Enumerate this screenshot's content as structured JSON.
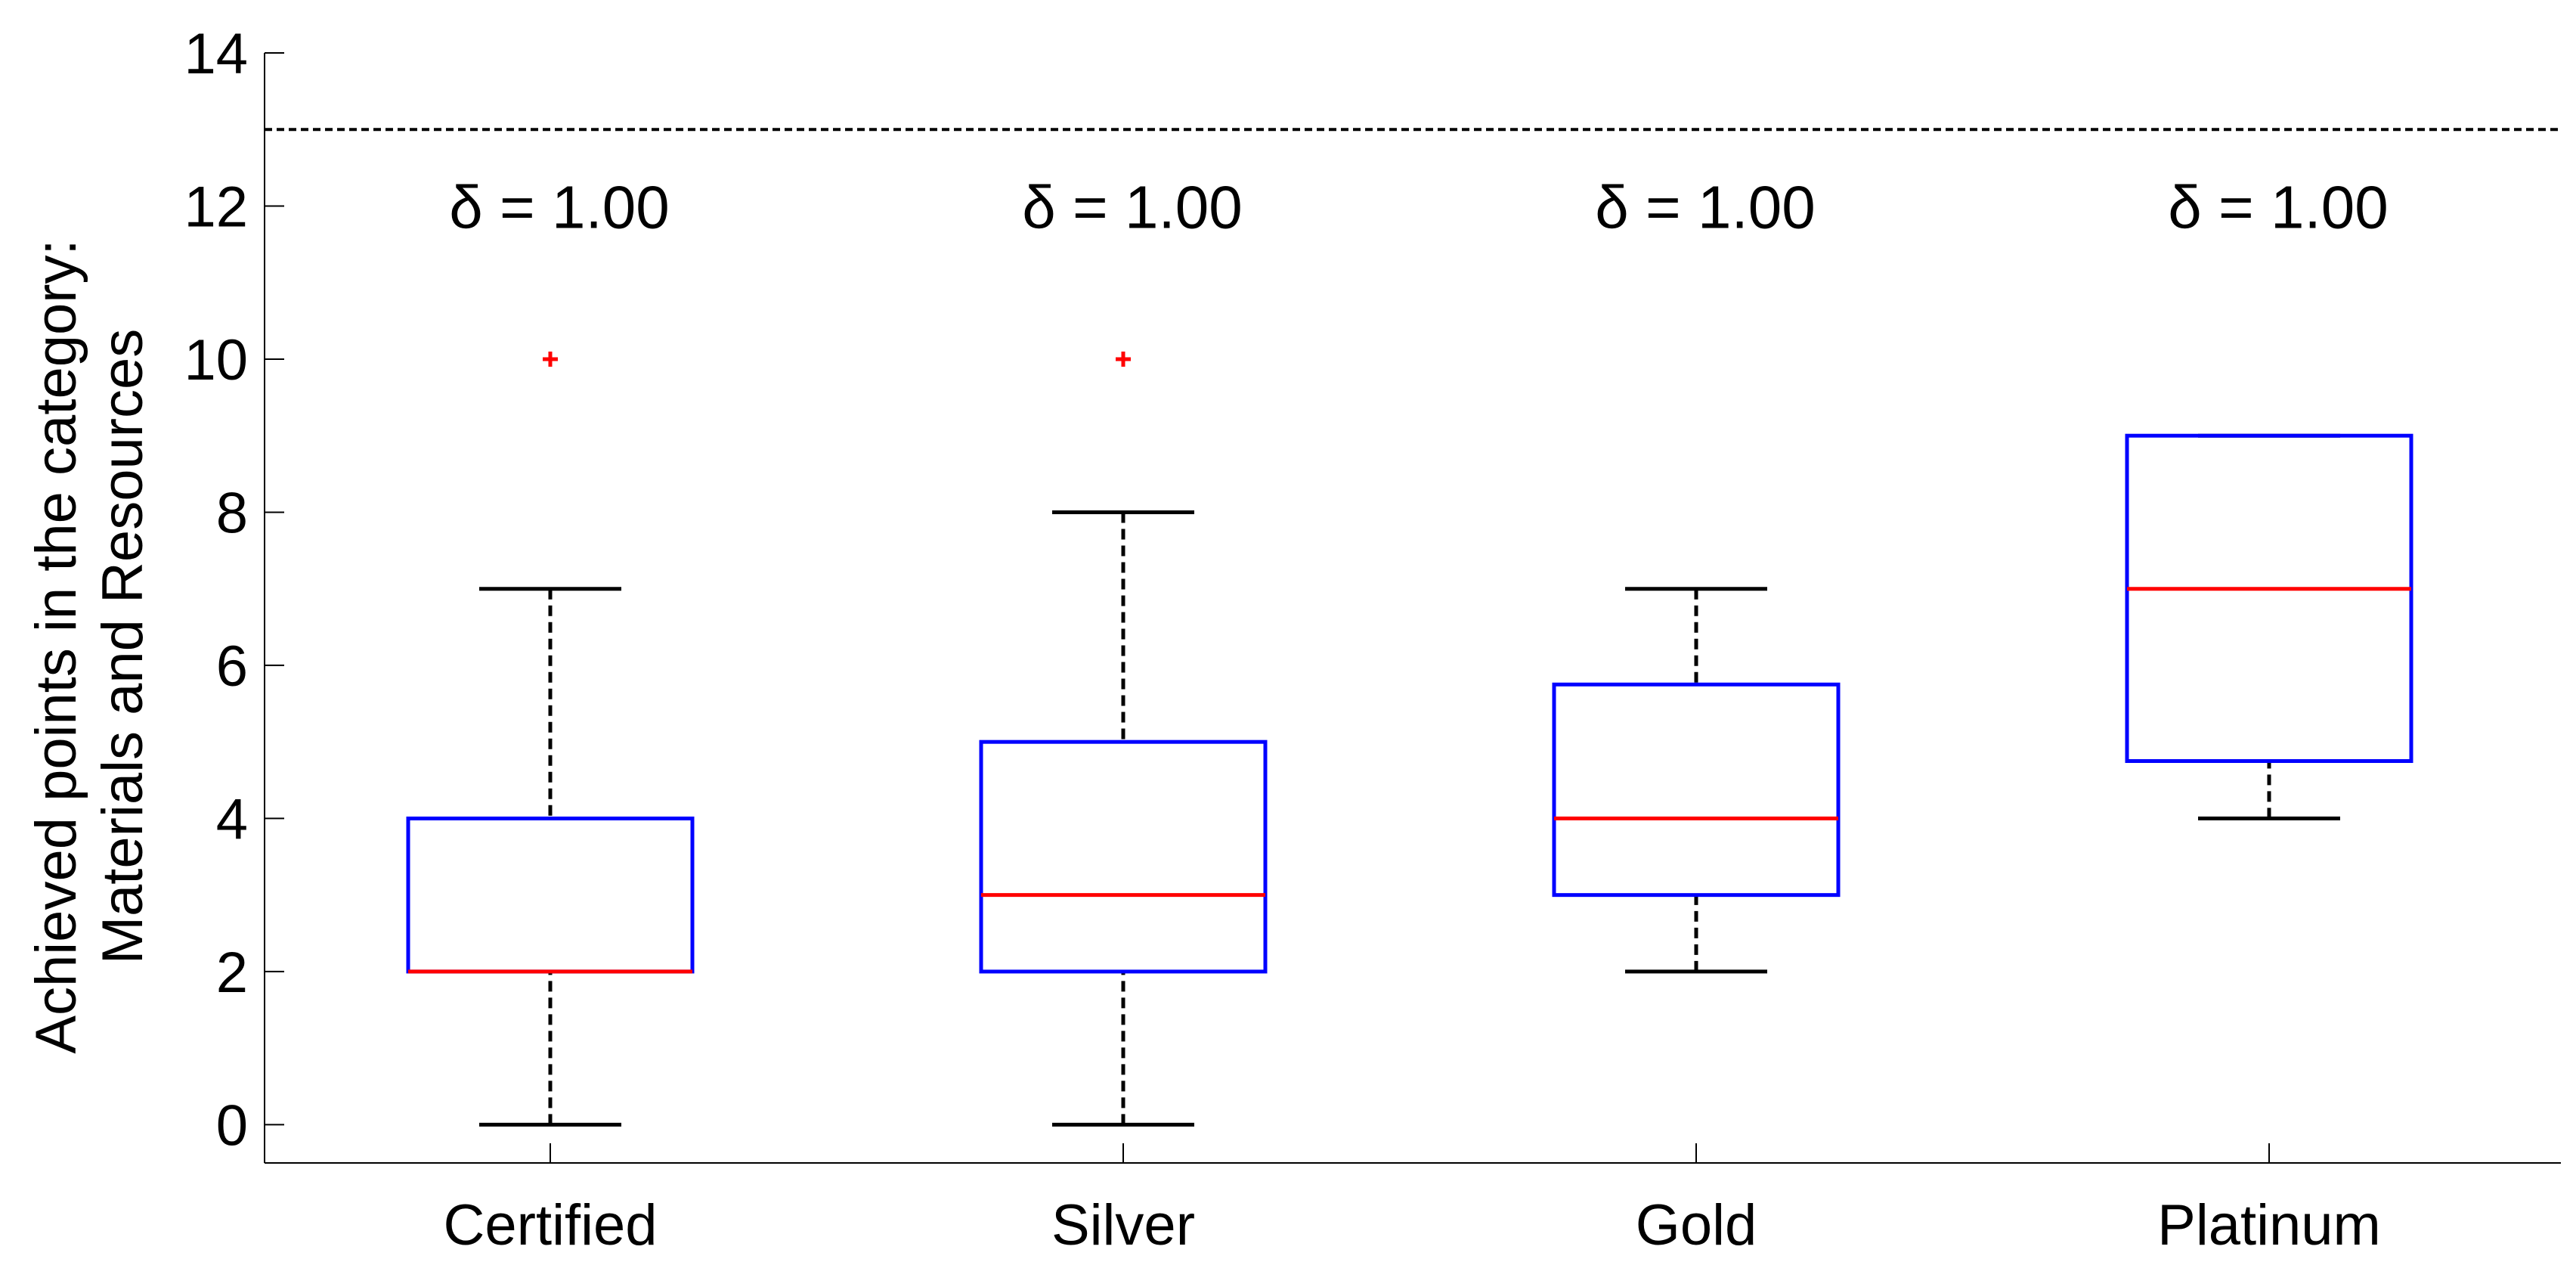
{
  "chart_data": {
    "type": "box",
    "ylabel_lines": [
      "Achieved points in the category:",
      "Materials and Resources"
    ],
    "ylim": [
      -0.5,
      14
    ],
    "yticks": [
      "0",
      "2",
      "4",
      "6",
      "8",
      "10",
      "12",
      "14"
    ],
    "reference_line": 13,
    "categories": [
      "Certified",
      "Silver",
      "Gold",
      "Platinum"
    ],
    "boxes": [
      {
        "category": "Certified",
        "whisker_low": 0,
        "q1": 2,
        "median": 2,
        "q3": 4,
        "whisker_high": 7,
        "outliers": [
          10
        ],
        "annotation": "δ = 1.00"
      },
      {
        "category": "Silver",
        "whisker_low": 0,
        "q1": 2,
        "median": 3,
        "q3": 5,
        "whisker_high": 8,
        "outliers": [
          10
        ],
        "annotation": "δ = 1.00"
      },
      {
        "category": "Gold",
        "whisker_low": 2,
        "q1": 3,
        "median": 4,
        "q3": 5.75,
        "whisker_high": 7,
        "outliers": [],
        "annotation": "δ = 1.00"
      },
      {
        "category": "Platinum",
        "whisker_low": 4,
        "q1": 4.75,
        "median": 7,
        "q3": 9,
        "whisker_high": 9,
        "outliers": [],
        "annotation": "δ = 1.00"
      }
    ],
    "colors": {
      "box": "#0000ff",
      "median": "#ff0000",
      "outlier": "#ff0000",
      "whisker": "#000000",
      "reference_line": "#000000"
    }
  }
}
